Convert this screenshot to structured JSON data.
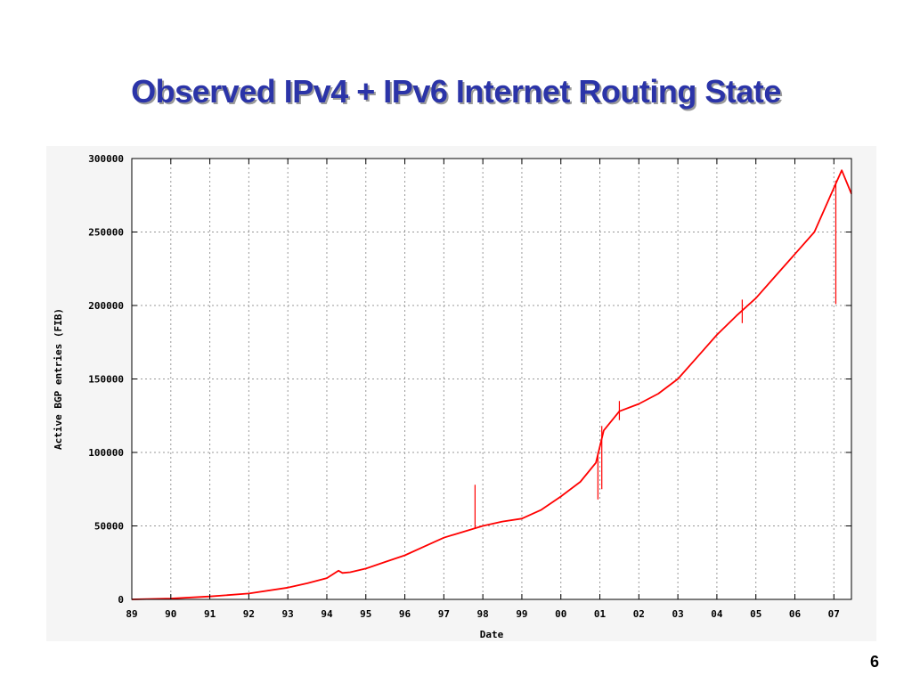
{
  "slide": {
    "title": "Observed IPv4 + IPv6 Internet Routing State",
    "page_number": "6"
  },
  "colors": {
    "title": "#2b34a8",
    "title_shadow": "#9a9a9a",
    "series": "#ff0000",
    "grid": "#999999",
    "panel": "#f5f5f5"
  },
  "chart_data": {
    "type": "line",
    "title": "",
    "xlabel": "Date",
    "ylabel": "Active BGP entries (FIB)",
    "xlim": [
      1989.0,
      2007.45
    ],
    "ylim": [
      0,
      300000
    ],
    "grid": true,
    "legend": "none",
    "x_ticks": [
      1989,
      1990,
      1991,
      1992,
      1993,
      1994,
      1995,
      1996,
      1997,
      1998,
      1999,
      2000,
      2001,
      2002,
      2003,
      2004,
      2005,
      2006,
      2007
    ],
    "x_tick_labels": [
      "89",
      "90",
      "91",
      "92",
      "93",
      "94",
      "95",
      "96",
      "97",
      "98",
      "99",
      "00",
      "01",
      "02",
      "03",
      "04",
      "05",
      "06",
      "07"
    ],
    "y_ticks": [
      0,
      50000,
      100000,
      150000,
      200000,
      250000,
      300000
    ],
    "y_tick_labels": [
      "0",
      "50000",
      "100000",
      "150000",
      "200000",
      "250000",
      "300000"
    ],
    "series": [
      {
        "x": [
          1989.0,
          1990.0,
          1991.0,
          1992.0,
          1993.0,
          1993.5,
          1994.0,
          1994.3,
          1994.4,
          1994.6,
          1995.0,
          1995.5,
          1996.0,
          1996.5,
          1997.0,
          1997.5,
          1998.0,
          1998.5,
          1999.0,
          1999.5,
          2000.0,
          2000.5,
          2000.9,
          2001.1,
          2001.5,
          2002.0,
          2002.5,
          2003.0,
          2003.5,
          2004.0,
          2004.5,
          2005.0,
          2005.5,
          2006.0,
          2006.5,
          2007.0,
          2007.2,
          2007.45
        ],
        "values": [
          0,
          600,
          2000,
          4000,
          8000,
          11000,
          14500,
          19500,
          18000,
          18500,
          21000,
          25500,
          30000,
          36000,
          42000,
          46000,
          50000,
          53000,
          55000,
          61000,
          70000,
          80000,
          93000,
          115000,
          128000,
          133000,
          140000,
          150000,
          165000,
          180000,
          193000,
          205000,
          220000,
          235000,
          250000,
          280000,
          292000,
          276000
        ]
      }
    ],
    "spikes": [
      {
        "x": 1997.8,
        "values": [
          48000,
          78000
        ]
      },
      {
        "x": 2000.95,
        "values": [
          68000,
          100000
        ]
      },
      {
        "x": 2001.05,
        "values": [
          75000,
          118000
        ]
      },
      {
        "x": 2001.5,
        "values": [
          122000,
          135000
        ]
      },
      {
        "x": 2004.65,
        "values": [
          188000,
          204000
        ]
      },
      {
        "x": 2007.05,
        "values": [
          201000,
          285000
        ]
      }
    ]
  }
}
